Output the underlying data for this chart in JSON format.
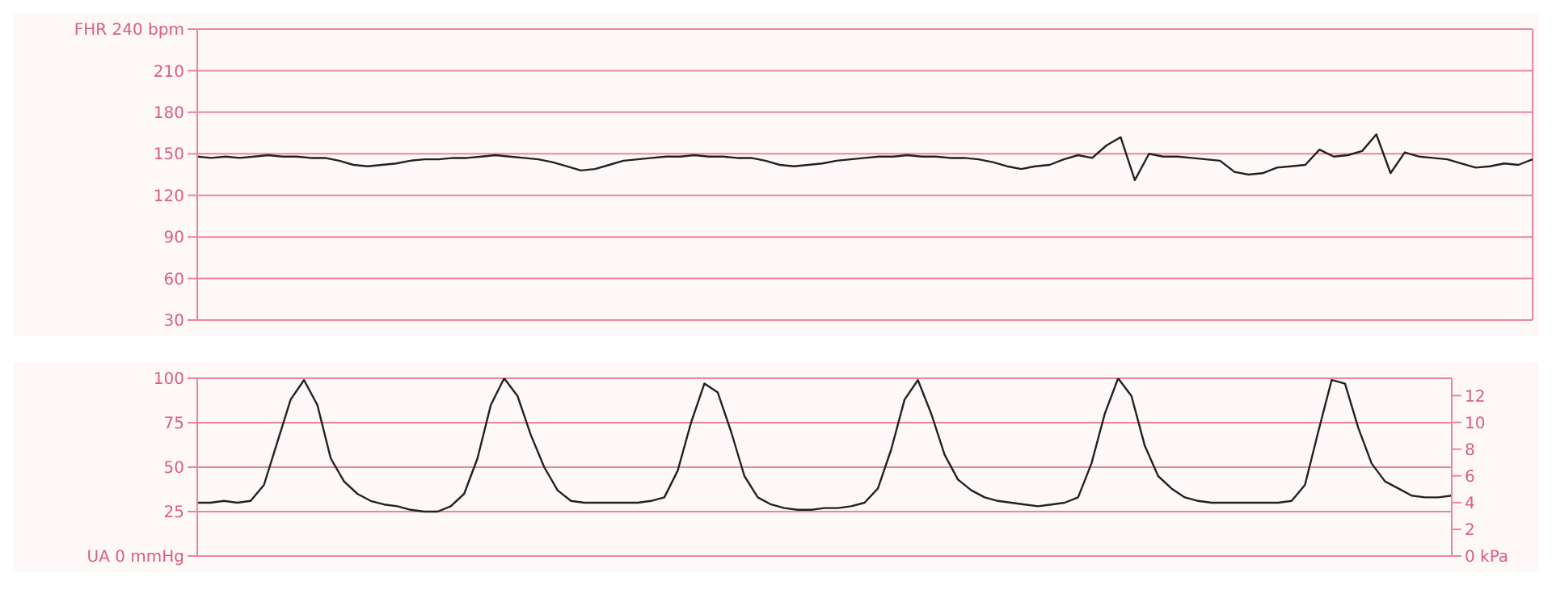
{
  "chart_data": [
    {
      "type": "line",
      "categories": [
        null,
        null,
        null,
        null,
        null,
        null,
        null,
        null,
        null,
        null,
        null,
        null,
        null,
        null,
        null,
        null,
        null,
        null,
        null,
        null,
        null,
        null,
        null,
        null,
        null,
        null,
        null,
        null,
        null,
        null,
        null,
        null,
        null,
        null,
        null,
        null,
        null,
        null,
        null,
        null,
        null,
        null,
        null,
        null,
        null,
        null,
        null,
        null,
        null,
        null,
        null,
        null,
        null,
        null,
        null,
        null,
        null,
        null,
        null,
        null,
        null,
        null,
        null,
        null,
        null,
        null,
        null,
        null,
        null,
        null,
        null,
        null,
        null,
        null,
        null,
        null,
        null,
        null,
        null,
        null,
        null,
        null,
        null,
        null,
        null,
        null,
        null,
        null,
        null,
        null,
        null,
        null,
        null,
        null,
        null
      ],
      "series": [
        {
          "color": "#222222",
          "values": [
            148,
            147,
            148,
            147,
            148,
            149,
            148,
            148,
            147,
            147,
            145,
            142,
            141,
            142,
            143,
            145,
            146,
            146,
            147,
            147,
            148,
            149,
            148,
            147,
            146,
            144,
            141,
            138,
            139,
            142,
            145,
            146,
            147,
            148,
            148,
            149,
            148,
            148,
            147,
            147,
            145,
            142,
            141,
            142,
            143,
            145,
            146,
            147,
            148,
            148,
            149,
            148,
            148,
            147,
            147,
            146,
            144,
            141,
            139,
            141,
            142,
            146,
            149,
            147,
            156,
            162,
            131,
            150,
            148,
            148,
            147,
            146,
            145,
            137,
            135,
            136,
            140,
            141,
            142,
            153,
            148,
            149,
            152,
            164,
            136,
            151,
            148,
            147,
            146,
            143,
            140,
            141,
            143,
            142,
            146
          ]
        }
      ],
      "ylim": [
        30,
        240
      ],
      "yticks": [
        30,
        60,
        90,
        120,
        150,
        180,
        210,
        {
          "value": 240,
          "label": "FHR 240 bpm"
        }
      ],
      "grid": true,
      "tick_labels": "y",
      "marker": "none",
      "line_style": "solid"
    },
    {
      "type": "line",
      "categories": [
        null,
        null,
        null,
        null,
        null,
        null,
        null,
        null,
        null,
        null,
        null,
        null,
        null,
        null,
        null,
        null,
        null,
        null,
        null,
        null,
        null,
        null,
        null,
        null,
        null,
        null,
        null,
        null,
        null,
        null,
        null,
        null,
        null,
        null,
        null,
        null,
        null,
        null,
        null,
        null,
        null,
        null,
        null,
        null,
        null,
        null,
        null,
        null,
        null,
        null,
        null,
        null,
        null,
        null,
        null,
        null,
        null,
        null,
        null,
        null,
        null,
        null,
        null,
        null,
        null,
        null,
        null,
        null,
        null,
        null,
        null,
        null,
        null,
        null,
        null,
        null,
        null,
        null,
        null,
        null,
        null,
        null,
        null,
        null,
        null,
        null,
        null,
        null,
        null,
        null,
        null,
        null,
        null,
        null,
        null
      ],
      "series": [
        {
          "color": "#222222",
          "values": [
            30,
            30,
            31,
            30,
            31,
            40,
            64,
            88,
            99,
            85,
            55,
            42,
            35,
            31,
            29,
            28,
            26,
            25,
            25,
            28,
            35,
            55,
            85,
            100,
            90,
            68,
            50,
            37,
            31,
            30,
            30,
            30,
            30,
            30,
            31,
            33,
            48,
            75,
            97,
            92,
            70,
            45,
            33,
            29,
            27,
            26,
            26,
            27,
            27,
            28,
            30,
            38,
            60,
            88,
            99,
            80,
            57,
            43,
            37,
            33,
            31,
            30,
            29,
            28,
            29,
            30,
            33,
            52,
            80,
            100,
            90,
            62,
            45,
            38,
            33,
            31,
            30,
            30,
            30,
            30,
            30,
            30,
            31,
            40,
            70,
            99,
            97,
            72,
            52,
            42,
            38,
            34,
            33,
            33,
            34
          ]
        }
      ],
      "ylim": [
        0,
        100
      ],
      "yticks": [
        {
          "value": 0,
          "label": "UA 0 mmHg"
        },
        25,
        50,
        75,
        100
      ],
      "y2lim": [
        0,
        13.3
      ],
      "y2ticks": [
        {
          "value": 0,
          "label": "0 kPa"
        },
        2,
        4,
        6,
        8,
        10,
        12
      ],
      "grid": true,
      "tick_labels": "y",
      "marker": "none",
      "line_style": "solid"
    }
  ]
}
